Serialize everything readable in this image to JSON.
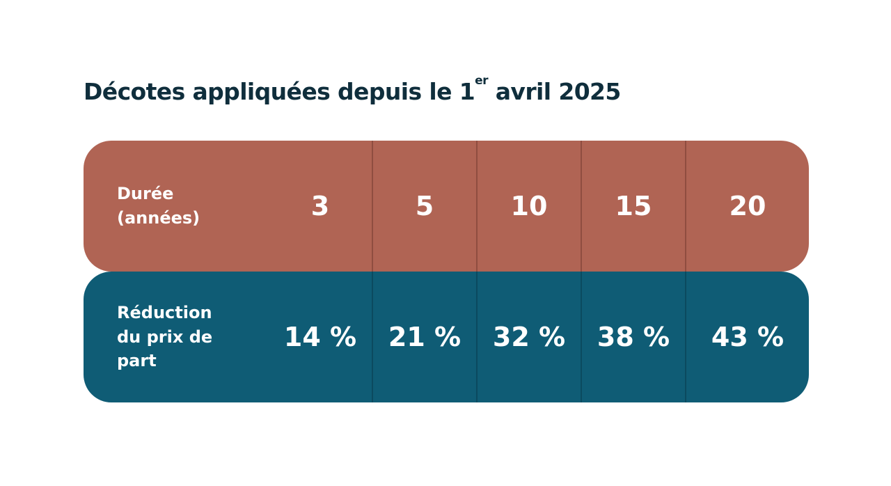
{
  "title_main": "Décotes appliquées depuis le 1",
  "title_sup": "er",
  "title_end": " avril 2025",
  "chart_data": {
    "type": "table",
    "rows": [
      {
        "label": "Durée\n(années)",
        "values": [
          "3",
          "5",
          "10",
          "15",
          "20"
        ],
        "color": "#b06454"
      },
      {
        "label": "Réduction\ndu prix de\npart",
        "values": [
          "14 %",
          "21 %",
          "32 %",
          "38 %",
          "43 %"
        ],
        "color": "#0f5c75"
      }
    ]
  }
}
